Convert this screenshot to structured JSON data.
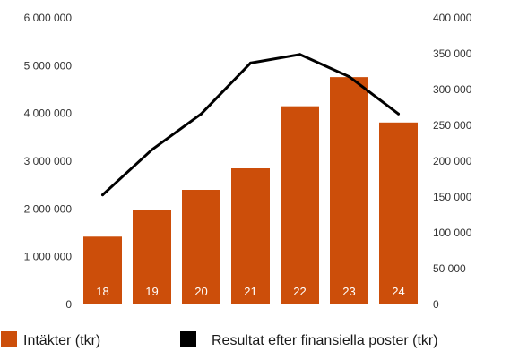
{
  "chart_data": {
    "type": "bar",
    "categories": [
      "18",
      "19",
      "20",
      "21",
      "22",
      "23",
      "24"
    ],
    "series": [
      {
        "name": "Intäkter (tkr)",
        "type": "bar",
        "axis": "left",
        "color": "#cc4e0a",
        "values": [
          1420000,
          1980000,
          2400000,
          2850000,
          4150000,
          4760000,
          3810000
        ]
      },
      {
        "name": "Resultat efter finansiella poster (tkr)",
        "type": "line",
        "axis": "right",
        "color": "#000000",
        "values": [
          153000,
          216000,
          266000,
          337000,
          349000,
          318000,
          266000
        ]
      }
    ],
    "ylim_left": [
      0,
      6000000
    ],
    "ylim_right": [
      0,
      400000
    ],
    "left_ticks": [
      "0",
      "1 000 000",
      "2 000 000",
      "3 000 000",
      "4 000 000",
      "5 000 000",
      "6 000 000"
    ],
    "right_ticks": [
      "0",
      "50 000",
      "100 000",
      "150 000",
      "200 000",
      "250 000",
      "300 000",
      "350 000",
      "400 000"
    ],
    "grid": false,
    "legend_position": "bottom"
  }
}
